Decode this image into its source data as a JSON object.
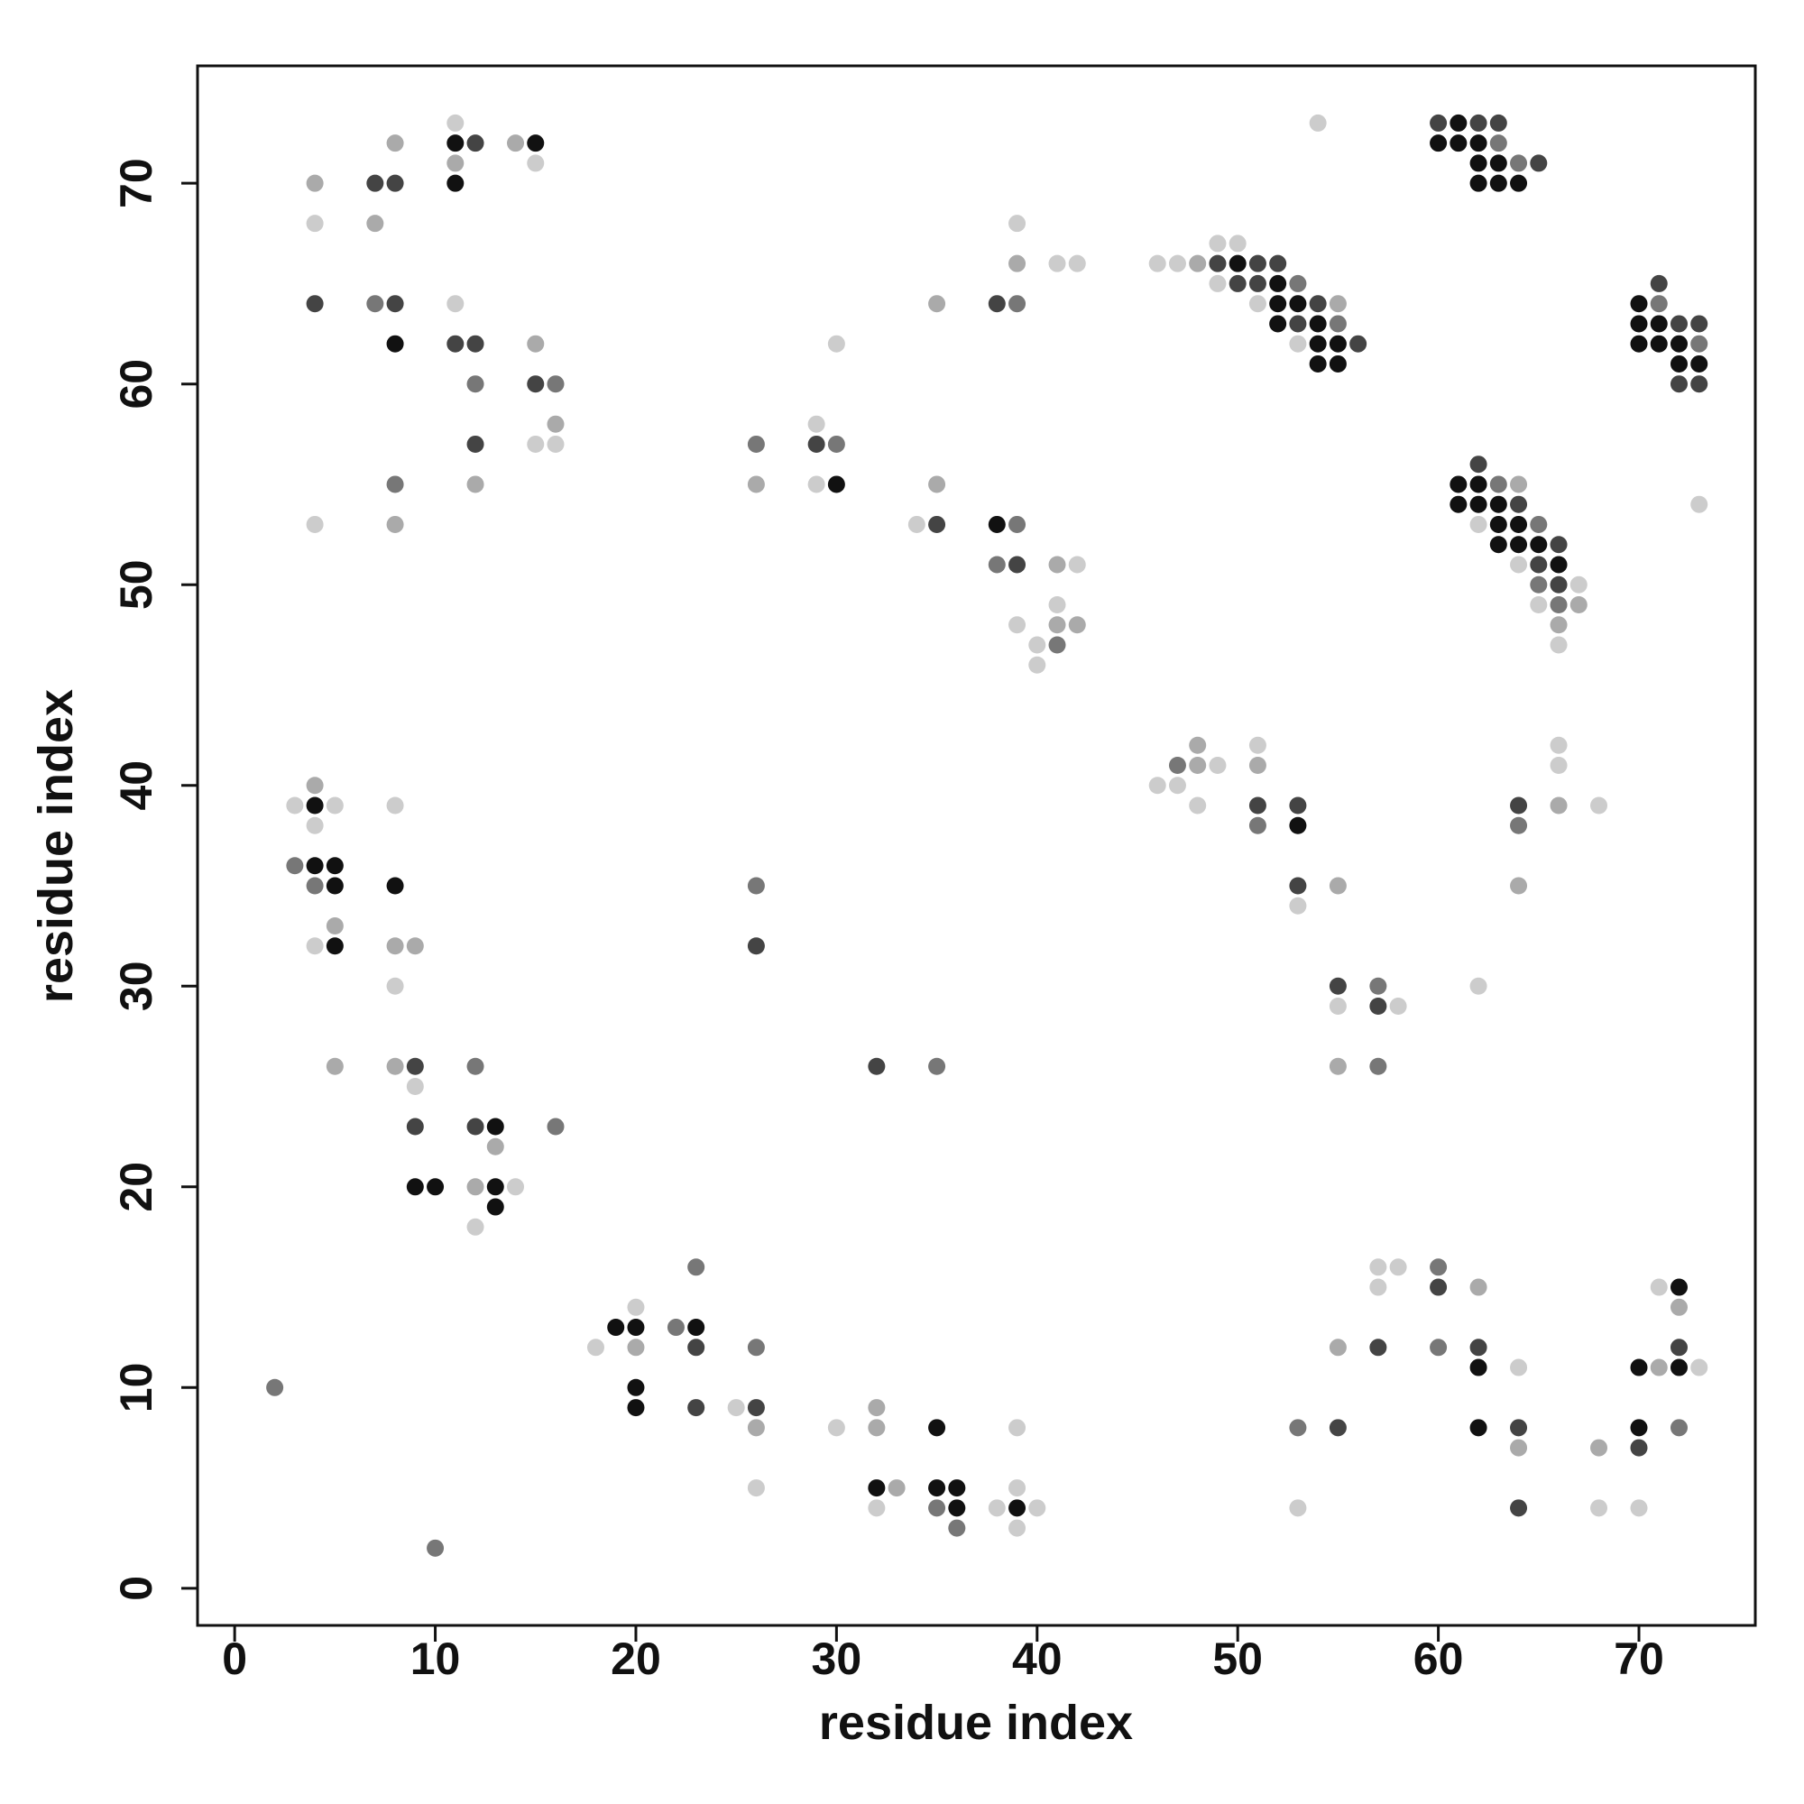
{
  "chart_data": {
    "type": "scatter",
    "xlabel": "residue index",
    "ylabel": "residue index",
    "xlim": [
      -1.85,
      75.8
    ],
    "ylim": [
      -1.85,
      75.85
    ],
    "xticks": [
      0,
      10,
      20,
      30,
      40,
      50,
      60,
      70
    ],
    "yticks": [
      0,
      10,
      20,
      30,
      40,
      50,
      60,
      70
    ],
    "x": [
      4,
      4,
      7,
      8,
      8,
      11,
      11,
      12,
      11,
      11,
      14,
      15,
      15,
      4,
      7,
      7,
      8,
      8,
      11,
      11,
      12,
      12,
      15,
      15,
      16,
      16,
      15,
      16,
      12,
      12,
      8,
      8,
      4,
      26,
      26,
      29,
      29,
      30,
      29,
      30,
      30,
      35,
      35,
      34,
      35,
      38,
      39,
      39,
      39,
      41,
      42,
      38,
      39,
      38,
      39,
      41,
      42,
      41,
      41,
      42,
      39,
      40,
      41,
      40,
      46,
      47,
      48,
      49,
      50,
      49,
      50,
      51,
      52,
      49,
      50,
      51,
      52,
      53,
      51,
      52,
      53,
      54,
      55,
      52,
      53,
      54,
      55,
      53,
      54,
      55,
      56,
      54,
      55,
      54,
      60,
      61,
      62,
      63,
      60,
      61,
      62,
      63,
      62,
      63,
      64,
      65,
      62,
      63,
      64,
      70,
      71,
      71,
      70,
      71,
      72,
      73,
      70,
      71,
      72,
      73,
      72,
      73,
      72,
      73,
      73,
      62,
      61,
      62,
      63,
      64,
      61,
      62,
      63,
      64,
      62,
      63,
      64,
      65,
      63,
      64,
      65,
      66,
      64,
      65,
      66,
      65,
      66,
      67,
      65,
      66,
      67,
      66,
      66,
      46,
      47,
      47,
      48,
      48,
      49,
      48,
      51,
      51,
      51,
      51,
      53,
      53,
      53,
      53,
      55,
      55,
      55,
      57,
      57,
      58,
      55,
      57,
      64,
      64,
      66,
      66,
      66,
      68,
      64,
      62,
      3,
      4,
      4,
      5,
      4,
      3,
      4,
      5,
      4,
      5,
      5,
      4,
      5,
      8,
      8,
      8,
      9,
      8,
      5,
      8,
      9,
      9,
      12,
      9,
      12,
      13,
      13,
      16,
      9,
      10,
      12,
      13,
      14,
      13,
      12,
      26,
      26,
      32,
      35,
      2,
      10,
      18,
      19,
      20,
      20,
      20,
      22,
      23,
      23,
      23,
      20,
      20,
      23,
      25,
      26,
      26,
      26,
      26,
      30,
      32,
      32,
      32,
      33,
      32,
      35,
      35,
      36,
      35,
      36,
      36,
      38,
      39,
      40,
      39,
      39,
      39,
      53,
      53,
      55,
      55,
      57,
      58,
      57,
      57,
      60,
      60,
      60,
      62,
      62,
      62,
      62,
      64,
      64,
      64,
      64,
      68,
      68,
      70,
      71,
      72,
      73,
      72,
      71,
      72,
      72,
      70,
      70,
      72,
      70
    ],
    "y": [
      70,
      68,
      70,
      70,
      72,
      73,
      72,
      72,
      71,
      70,
      72,
      72,
      71,
      64,
      68,
      64,
      64,
      62,
      64,
      62,
      62,
      60,
      62,
      60,
      60,
      58,
      57,
      57,
      57,
      55,
      55,
      53,
      53,
      57,
      55,
      58,
      57,
      57,
      55,
      55,
      62,
      64,
      55,
      53,
      53,
      64,
      64,
      68,
      66,
      66,
      66,
      53,
      53,
      51,
      51,
      51,
      51,
      49,
      48,
      48,
      48,
      47,
      47,
      46,
      66,
      66,
      66,
      67,
      67,
      66,
      66,
      66,
      66,
      65,
      65,
      65,
      65,
      65,
      64,
      64,
      64,
      64,
      64,
      63,
      63,
      63,
      63,
      62,
      62,
      62,
      62,
      61,
      61,
      73,
      73,
      73,
      73,
      73,
      72,
      72,
      72,
      72,
      71,
      71,
      71,
      71,
      70,
      70,
      70,
      64,
      65,
      64,
      63,
      63,
      63,
      63,
      62,
      62,
      62,
      62,
      61,
      61,
      60,
      60,
      54,
      56,
      55,
      55,
      55,
      55,
      54,
      54,
      54,
      54,
      53,
      53,
      53,
      53,
      52,
      52,
      52,
      52,
      51,
      51,
      51,
      50,
      50,
      50,
      49,
      49,
      49,
      48,
      47,
      40,
      41,
      40,
      42,
      41,
      41,
      39,
      42,
      41,
      39,
      38,
      39,
      38,
      35,
      34,
      35,
      30,
      29,
      30,
      29,
      29,
      26,
      26,
      39,
      38,
      42,
      41,
      39,
      39,
      35,
      30,
      39,
      40,
      39,
      39,
      38,
      36,
      36,
      36,
      35,
      35,
      33,
      32,
      32,
      39,
      35,
      32,
      32,
      30,
      26,
      26,
      26,
      25,
      26,
      23,
      23,
      23,
      22,
      23,
      20,
      20,
      20,
      20,
      20,
      19,
      18,
      35,
      32,
      26,
      26,
      10,
      2,
      12,
      13,
      13,
      14,
      12,
      13,
      13,
      16,
      12,
      10,
      9,
      9,
      9,
      9,
      12,
      8,
      5,
      8,
      9,
      8,
      5,
      5,
      4,
      8,
      5,
      5,
      4,
      4,
      3,
      4,
      4,
      4,
      5,
      3,
      8,
      8,
      4,
      12,
      8,
      16,
      16,
      15,
      12,
      16,
      15,
      12,
      15,
      12,
      11,
      8,
      11,
      8,
      7,
      4,
      7,
      4,
      11,
      11,
      11,
      11,
      15,
      15,
      14,
      12,
      8,
      7,
      8,
      4
    ],
    "colors": [
      "#aaaaaa",
      "#cccccc",
      "#444444",
      "#444444",
      "#aaaaaa",
      "#cccccc",
      "#111111",
      "#444444",
      "#aaaaaa",
      "#111111",
      "#aaaaaa",
      "#111111",
      "#cccccc",
      "#444444",
      "#aaaaaa",
      "#777777",
      "#444444",
      "#111111",
      "#cccccc",
      "#444444",
      "#444444",
      "#777777",
      "#aaaaaa",
      "#444444",
      "#777777",
      "#aaaaaa",
      "#cccccc",
      "#cccccc",
      "#444444",
      "#aaaaaa",
      "#777777",
      "#aaaaaa",
      "#cccccc",
      "#777777",
      "#aaaaaa",
      "#cccccc",
      "#444444",
      "#777777",
      "#cccccc",
      "#111111",
      "#cccccc",
      "#aaaaaa",
      "#aaaaaa",
      "#cccccc",
      "#444444",
      "#444444",
      "#777777",
      "#cccccc",
      "#aaaaaa",
      "#cccccc",
      "#cccccc",
      "#111111",
      "#777777",
      "#777777",
      "#444444",
      "#aaaaaa",
      "#cccccc",
      "#cccccc",
      "#aaaaaa",
      "#aaaaaa",
      "#cccccc",
      "#cccccc",
      "#777777",
      "#cccccc",
      "#cccccc",
      "#cccccc",
      "#aaaaaa",
      "#cccccc",
      "#cccccc",
      "#444444",
      "#111111",
      "#444444",
      "#444444",
      "#cccccc",
      "#444444",
      "#444444",
      "#111111",
      "#777777",
      "#cccccc",
      "#111111",
      "#111111",
      "#444444",
      "#aaaaaa",
      "#111111",
      "#444444",
      "#111111",
      "#777777",
      "#cccccc",
      "#111111",
      "#111111",
      "#444444",
      "#111111",
      "#111111",
      "#cccccc",
      "#444444",
      "#111111",
      "#444444",
      "#444444",
      "#111111",
      "#111111",
      "#111111",
      "#777777",
      "#111111",
      "#111111",
      "#777777",
      "#444444",
      "#111111",
      "#111111",
      "#111111",
      "#111111",
      "#444444",
      "#777777",
      "#111111",
      "#111111",
      "#444444",
      "#444444",
      "#111111",
      "#111111",
      "#111111",
      "#777777",
      "#111111",
      "#111111",
      "#444444",
      "#444444",
      "#cccccc",
      "#444444",
      "#111111",
      "#111111",
      "#777777",
      "#aaaaaa",
      "#111111",
      "#111111",
      "#111111",
      "#444444",
      "#cccccc",
      "#111111",
      "#111111",
      "#777777",
      "#111111",
      "#111111",
      "#111111",
      "#444444",
      "#cccccc",
      "#444444",
      "#111111",
      "#777777",
      "#444444",
      "#cccccc",
      "#cccccc",
      "#777777",
      "#aaaaaa",
      "#aaaaaa",
      "#cccccc",
      "#cccccc",
      "#777777",
      "#cccccc",
      "#aaaaaa",
      "#aaaaaa",
      "#cccccc",
      "#cccccc",
      "#cccccc",
      "#aaaaaa",
      "#444444",
      "#777777",
      "#444444",
      "#111111",
      "#444444",
      "#cccccc",
      "#aaaaaa",
      "#444444",
      "#cccccc",
      "#777777",
      "#444444",
      "#cccccc",
      "#aaaaaa",
      "#777777",
      "#444444",
      "#777777",
      "#cccccc",
      "#cccccc",
      "#aaaaaa",
      "#cccccc",
      "#aaaaaa",
      "#cccccc",
      "#cccccc",
      "#aaaaaa",
      "#111111",
      "#cccccc",
      "#cccccc",
      "#777777",
      "#111111",
      "#111111",
      "#777777",
      "#111111",
      "#aaaaaa",
      "#cccccc",
      "#111111",
      "#cccccc",
      "#111111",
      "#aaaaaa",
      "#aaaaaa",
      "#cccccc",
      "#aaaaaa",
      "#aaaaaa",
      "#444444",
      "#cccccc",
      "#777777",
      "#444444",
      "#444444",
      "#111111",
      "#aaaaaa",
      "#777777",
      "#111111",
      "#111111",
      "#aaaaaa",
      "#111111",
      "#cccccc",
      "#111111",
      "#cccccc",
      "#777777",
      "#444444",
      "#444444",
      "#777777",
      "#777777",
      "#777777",
      "#cccccc",
      "#111111",
      "#111111",
      "#cccccc",
      "#aaaaaa",
      "#777777",
      "#111111",
      "#777777",
      "#444444",
      "#111111",
      "#111111",
      "#444444",
      "#cccccc",
      "#444444",
      "#777777",
      "#aaaaaa",
      "#cccccc",
      "#cccccc",
      "#aaaaaa",
      "#aaaaaa",
      "#111111",
      "#aaaaaa",
      "#cccccc",
      "#111111",
      "#111111",
      "#111111",
      "#777777",
      "#111111",
      "#777777",
      "#cccccc",
      "#111111",
      "#cccccc",
      "#cccccc",
      "#cccccc",
      "#cccccc",
      "#777777",
      "#cccccc",
      "#aaaaaa",
      "#444444",
      "#cccccc",
      "#cccccc",
      "#cccccc",
      "#444444",
      "#777777",
      "#444444",
      "#777777",
      "#aaaaaa",
      "#444444",
      "#111111",
      "#111111",
      "#cccccc",
      "#444444",
      "#aaaaaa",
      "#444444",
      "#aaaaaa",
      "#cccccc",
      "#111111",
      "#aaaaaa",
      "#111111",
      "#cccccc",
      "#111111",
      "#cccccc",
      "#aaaaaa",
      "#444444",
      "#111111",
      "#444444",
      "#777777",
      "#cccccc"
    ]
  }
}
